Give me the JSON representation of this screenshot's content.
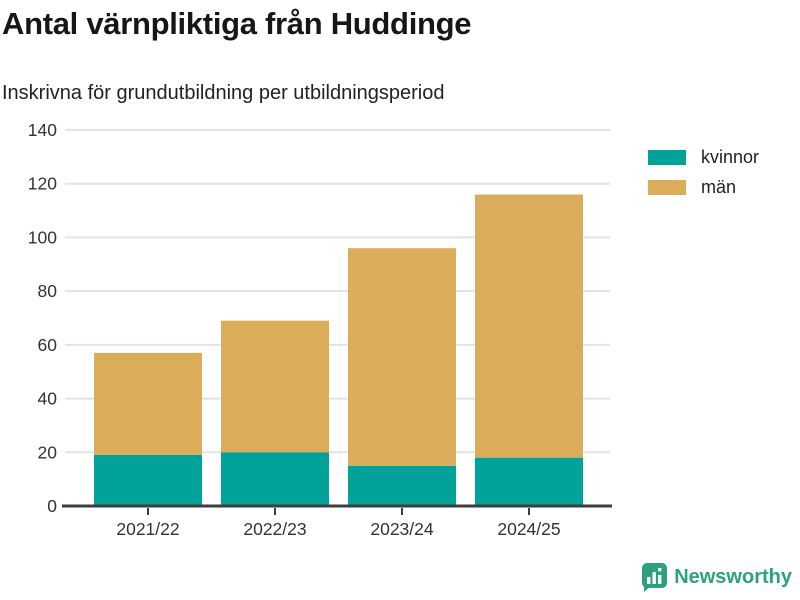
{
  "header": {
    "title": "Antal värnpliktiga från Huddinge",
    "subtitle": "Inskrivna för grundutbildning per utbildningsperiod"
  },
  "chart_data": {
    "type": "bar",
    "stacked": true,
    "title": "Antal värnpliktiga från Huddinge",
    "subtitle": "Inskrivna för grundutbildning per utbildningsperiod",
    "categories": [
      "2021/22",
      "2022/23",
      "2023/24",
      "2024/25"
    ],
    "series": [
      {
        "name": "kvinnor",
        "color": "#00a29a",
        "values": [
          19,
          20,
          15,
          18
        ]
      },
      {
        "name": "män",
        "color": "#dbac5a",
        "values": [
          38,
          49,
          81,
          98
        ]
      }
    ],
    "totals": [
      57,
      69,
      96,
      116
    ],
    "xlabel": "",
    "ylabel": "",
    "ylim": [
      0,
      140
    ],
    "yticks": [
      0,
      20,
      40,
      60,
      80,
      100,
      120,
      140
    ],
    "grid": "horizontal",
    "legend_position": "right",
    "gridline_color": "#e3e3e3",
    "axis_color": "#3d3d3d",
    "tick_label_color": "#333333"
  },
  "branding": {
    "name": "Newsworthy",
    "color": "#2ba17c"
  }
}
